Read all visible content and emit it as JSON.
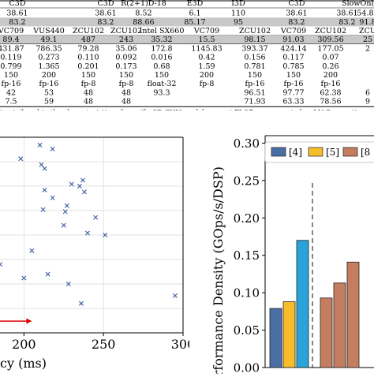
{
  "table": {
    "header_row": [
      "C3D",
      "C3D",
      "R(2+1)D-18",
      "E3D",
      "I3D",
      "C3D",
      "SlowOnly"
    ],
    "rows": [
      {
        "cells": [
          "38.61",
          "38.61",
          "8.52",
          "6.1",
          "110",
          "38.61",
          "38.61",
          "54.81"
        ],
        "shaded": false
      },
      {
        "cells": [
          "83.2",
          "83.2",
          "88.66",
          "85.17",
          "95",
          "83.2",
          "83.2",
          "91.8"
        ],
        "shaded": true
      },
      {
        "cells": [
          "VC709",
          "VUS440",
          "ZCU102",
          "ZCU102",
          "Intel SX660",
          "VC709",
          "ZCU102",
          "VC709",
          "ZCU102",
          "ZCU"
        ],
        "shaded": false
      },
      {
        "cells": [
          "89.4",
          "49.1",
          "487",
          "243",
          "35.32",
          "15.5",
          "98.15",
          "91.03",
          "309.56",
          "25"
        ],
        "shaded": true
      },
      {
        "cells": [
          "431.87",
          "786.35",
          "79.28",
          "35.06",
          "172.8",
          "1145.83",
          "393.37",
          "424.14",
          "177.05",
          "2"
        ],
        "shaded": false
      },
      {
        "cells": [
          "0.119",
          "0.273",
          "0.110",
          "0.092",
          "0.016",
          "0.42",
          "0.156",
          "0.117",
          "0.07",
          ""
        ],
        "shaded": false
      },
      {
        "cells": [
          "0.799",
          "1.365",
          "0.201",
          "0.173",
          "0.68",
          "1.59",
          "0.781",
          "0.785",
          "0.26",
          ""
        ],
        "shaded": false
      },
      {
        "cells": [
          "150",
          "200",
          "150",
          "150",
          "150",
          "200",
          "150",
          "150",
          "200",
          ""
        ],
        "shaded": false
      },
      {
        "cells": [
          "fp-16",
          "fp-16",
          "fp-8",
          "fp-8",
          "float-32",
          "fp-8",
          "fp-16",
          "fp-16",
          "fp-16",
          ""
        ],
        "shaded": false
      },
      {
        "cells": [
          "42",
          "53",
          "48",
          "48",
          "93.3",
          "",
          "96.51",
          "97.77",
          "62.38",
          "6"
        ],
        "shaded": false
      },
      {
        "cells": [
          "7.5",
          "59",
          "48",
          "48",
          "",
          "",
          "71.93",
          "63.33",
          "78.56",
          "9"
        ],
        "shaded": false
      }
    ],
    "footnote_left": "ing tailored to the characteristics of specific 3D CNN models.",
    "footnote_right": "† FLOPs are reported as MAC operations."
  },
  "chart_data": [
    {
      "type": "scatter",
      "xlabel": "cy (ms)",
      "xlim": [
        180,
        300
      ],
      "ylim": [
        0,
        100
      ],
      "xticks": [
        200,
        250,
        300
      ],
      "grid": true,
      "marker": "x",
      "marker_color": "#3a5aa0",
      "arrow_color": "#dd0000",
      "points": [
        {
          "x": 180,
          "y": 93
        },
        {
          "x": 198,
          "y": 89
        },
        {
          "x": 210,
          "y": 96
        },
        {
          "x": 211,
          "y": 86
        },
        {
          "x": 213,
          "y": 84
        },
        {
          "x": 218,
          "y": 94
        },
        {
          "x": 213,
          "y": 73
        },
        {
          "x": 218,
          "y": 69
        },
        {
          "x": 212,
          "y": 63
        },
        {
          "x": 230,
          "y": 76
        },
        {
          "x": 235,
          "y": 75
        },
        {
          "x": 237,
          "y": 78
        },
        {
          "x": 238,
          "y": 72
        },
        {
          "x": 245,
          "y": 59
        },
        {
          "x": 240,
          "y": 51
        },
        {
          "x": 226,
          "y": 62
        },
        {
          "x": 227,
          "y": 65
        },
        {
          "x": 180,
          "y": 66
        },
        {
          "x": 180,
          "y": 64
        },
        {
          "x": 182,
          "y": 59
        },
        {
          "x": 183,
          "y": 51
        },
        {
          "x": 225,
          "y": 55
        },
        {
          "x": 251,
          "y": 50
        },
        {
          "x": 185,
          "y": 35
        },
        {
          "x": 205,
          "y": 42
        },
        {
          "x": 180,
          "y": 25
        },
        {
          "x": 183,
          "y": 22
        },
        {
          "x": 200,
          "y": 28
        },
        {
          "x": 215,
          "y": 30
        },
        {
          "x": 228,
          "y": 25
        },
        {
          "x": 236,
          "y": 15
        },
        {
          "x": 295,
          "y": 19
        }
      ]
    },
    {
      "type": "bar",
      "ylabel": "erformance Density (GOps/s/DSP)",
      "ylim": [
        0.0,
        0.31
      ],
      "yticks": [
        "0.00",
        "0.05",
        "0.10",
        "0.15",
        "0.20",
        "0.25",
        "0.30"
      ],
      "grid": false,
      "legend_position": "top",
      "legend": [
        {
          "label": "[4]",
          "color": "#4a6fa5"
        },
        {
          "label": "[5]",
          "color": "#f5bd2a"
        },
        {
          "label": "[8",
          "color": "#c47d5f"
        }
      ],
      "group_separator": "dashed",
      "series": [
        {
          "color": "#4a6fa5",
          "values": [
            0.079
          ]
        },
        {
          "color": "#f5bd2a",
          "values": [
            0.088
          ]
        },
        {
          "color": "#2aa3d9",
          "values": [
            0.17
          ]
        },
        {
          "color": "#c47d5f",
          "values": [
            0.093
          ]
        },
        {
          "color": "#c47d5f",
          "values": [
            0.113
          ]
        },
        {
          "color": "#c47d5f",
          "values": [
            0.141
          ]
        }
      ]
    }
  ]
}
